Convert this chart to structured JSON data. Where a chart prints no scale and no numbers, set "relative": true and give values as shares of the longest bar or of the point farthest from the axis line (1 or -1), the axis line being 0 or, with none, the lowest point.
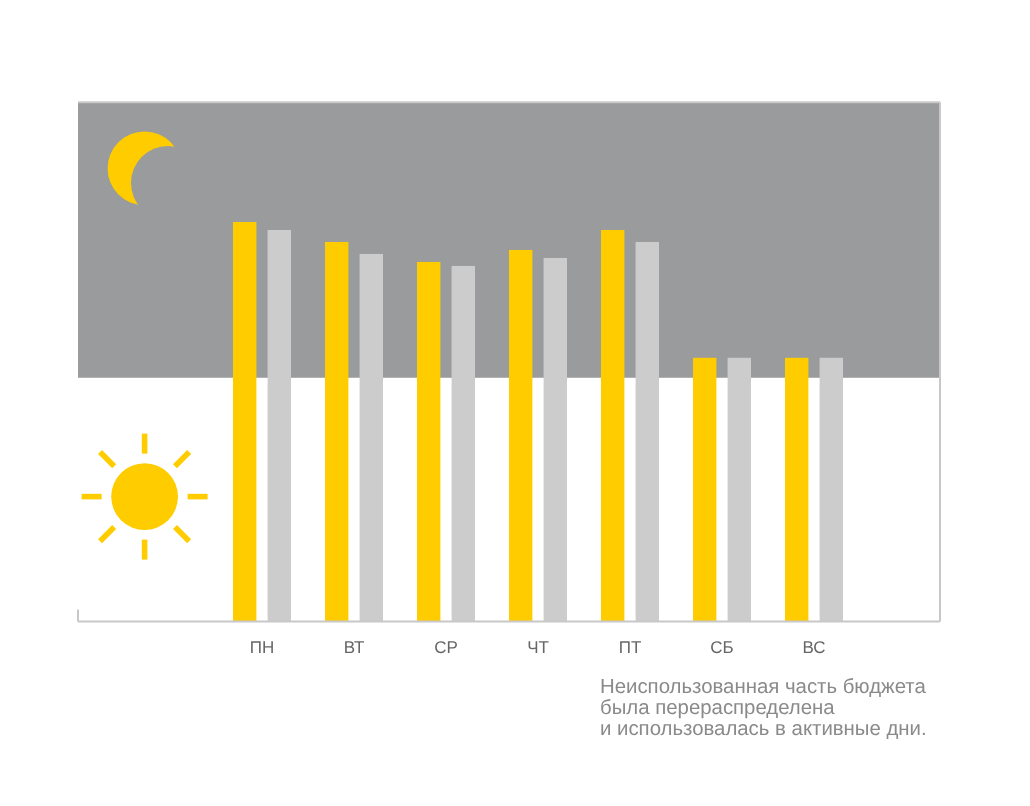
{
  "chart_data": {
    "type": "bar",
    "categories": [
      "ПН",
      "ВТ",
      "СР",
      "ЧТ",
      "ПТ",
      "СБ",
      "ВС"
    ],
    "relative": true,
    "series": [
      {
        "color": "#ffcc00",
        "values": [
          1.0,
          0.95,
          0.9,
          0.93,
          0.98,
          0.66,
          0.66
        ]
      },
      {
        "color": "#cccccc",
        "values": [
          0.98,
          0.92,
          0.89,
          0.91,
          0.95,
          0.66,
          0.66
        ]
      }
    ],
    "bands": [
      {
        "axis": "y",
        "from": 0.61,
        "to": 1.3,
        "color": "#9a9b9d"
      }
    ],
    "annotations": [
      "Неиспользованная часть бюджета\nбыла перераспределена\nи использовалась в активные дни."
    ]
  }
}
